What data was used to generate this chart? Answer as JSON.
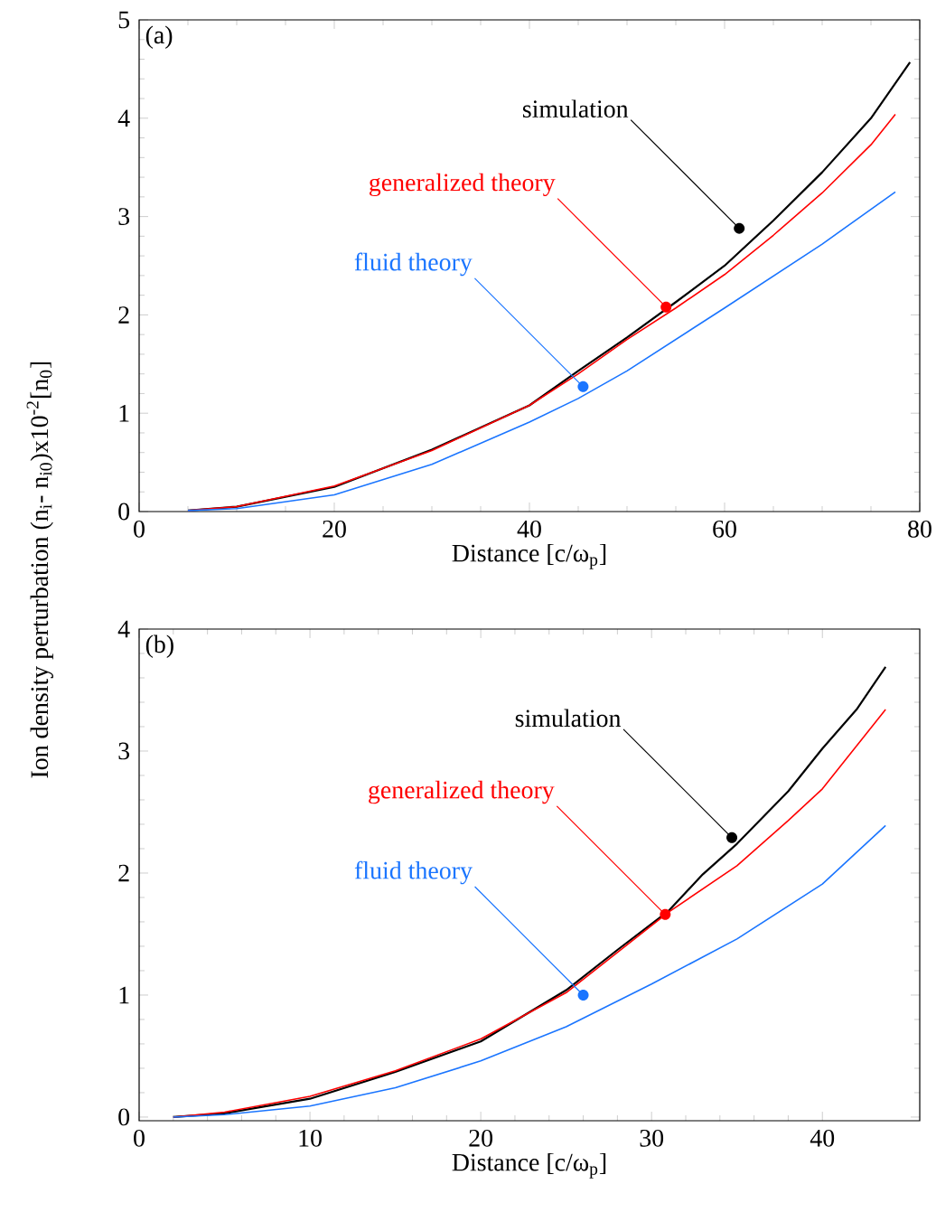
{
  "chart_data": [
    {
      "type": "line",
      "title": "(a)",
      "xlabel": "Distance [c/ω$_{p}$]",
      "ylabel": "Ion density perturbation (n$_{i}$- n$_{i0}$)x10$^{-2}$[n$_{0}$]",
      "xlim": [
        0,
        80
      ],
      "ylim": [
        0,
        5
      ],
      "xticks": [
        0,
        20,
        40,
        60,
        80
      ],
      "yticks": [
        0,
        1,
        2,
        3,
        4,
        5
      ],
      "series": [
        {
          "color": "#000000",
          "x": [
            5,
            10,
            20,
            30,
            40,
            45,
            50,
            55,
            60,
            65,
            70,
            75,
            79
          ],
          "values": [
            0.01,
            0.05,
            0.25,
            0.63,
            1.08,
            1.43,
            1.77,
            2.13,
            2.5,
            2.96,
            3.45,
            4.0,
            4.57
          ]
        },
        {
          "color": "#ff0000",
          "x": [
            5,
            10,
            20,
            30,
            40,
            45,
            50,
            55,
            60,
            65,
            70,
            75,
            77.5
          ],
          "values": [
            0.01,
            0.05,
            0.26,
            0.62,
            1.08,
            1.4,
            1.75,
            2.07,
            2.41,
            2.81,
            3.24,
            3.73,
            4.04
          ]
        },
        {
          "color": "#1a75ff",
          "x": [
            5,
            10,
            20,
            30,
            40,
            45,
            50,
            60,
            70,
            77.5
          ],
          "values": [
            0.01,
            0.03,
            0.17,
            0.48,
            0.91,
            1.15,
            1.43,
            2.07,
            2.72,
            3.25
          ]
        }
      ],
      "annotations": [
        {
          "text": "simulation",
          "x": 61.5,
          "y": 2.88
        },
        {
          "text": "generalized theory",
          "x": 54,
          "y": 2.08
        },
        {
          "text": "fluid theory",
          "x": 45.5,
          "y": 1.27
        }
      ]
    },
    {
      "type": "line",
      "title": "(b)",
      "xlabel": "Distance [c/ω$_{p}$]",
      "xlim": [
        0,
        45.7
      ],
      "ylim": [
        -0.03,
        4
      ],
      "xticks": [
        0,
        10,
        20,
        30,
        40
      ],
      "yticks": [
        0,
        1,
        2,
        3,
        4
      ],
      "series": [
        {
          "color": "#000000",
          "x": [
            2,
            5,
            10,
            15,
            20,
            25,
            28,
            31,
            33,
            35,
            38,
            40,
            42,
            43.7
          ],
          "values": [
            0.0,
            0.03,
            0.15,
            0.37,
            0.62,
            1.04,
            1.37,
            1.69,
            1.99,
            2.24,
            2.67,
            3.02,
            3.34,
            3.69
          ]
        },
        {
          "color": "#ff0000",
          "x": [
            2,
            5,
            10,
            15,
            20,
            25,
            31,
            35,
            38,
            40,
            43.7
          ],
          "values": [
            0.0,
            0.04,
            0.17,
            0.38,
            0.64,
            1.02,
            1.68,
            2.06,
            2.43,
            2.69,
            3.34
          ]
        },
        {
          "color": "#1a75ff",
          "x": [
            2,
            5,
            10,
            15,
            20,
            25,
            30,
            35,
            40,
            43.7
          ],
          "values": [
            0.0,
            0.02,
            0.09,
            0.24,
            0.46,
            0.74,
            1.09,
            1.46,
            1.91,
            2.39
          ]
        }
      ],
      "annotations": [
        {
          "text": "simulation",
          "x": 34.7,
          "y": 2.29
        },
        {
          "text": "generalized theory",
          "x": 30.8,
          "y": 1.66
        },
        {
          "text": "fluid theory",
          "x": 26,
          "y": 1.0
        }
      ]
    }
  ]
}
